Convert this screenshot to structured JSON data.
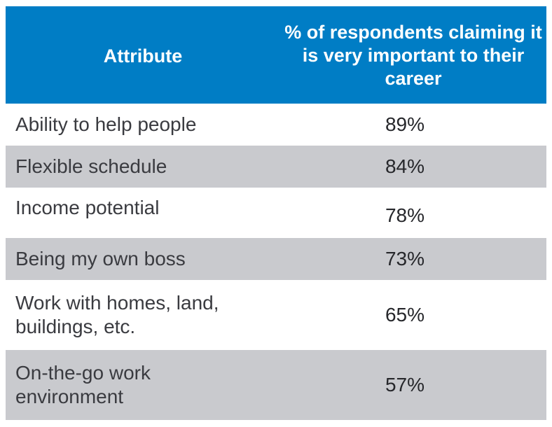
{
  "colors": {
    "header_bg": "#007DC5",
    "header_text": "#FFFFFF",
    "stripe_bg": "#C9CACE",
    "body_text": "#3A3B40"
  },
  "table": {
    "headers": {
      "attribute": "Attribute",
      "percent": "% of respondents claiming it is very important to their career"
    },
    "rows": [
      {
        "attribute": "Ability to help people",
        "percent": "89%"
      },
      {
        "attribute": "Flexible schedule",
        "percent": "84%"
      },
      {
        "attribute": "Income potential",
        "percent": "78%"
      },
      {
        "attribute": "Being my own boss",
        "percent": "73%"
      },
      {
        "attribute": "Work with homes, land, buildings, etc.",
        "percent": "65%"
      },
      {
        "attribute": "On-the-go work environment",
        "percent": "57%"
      }
    ]
  }
}
